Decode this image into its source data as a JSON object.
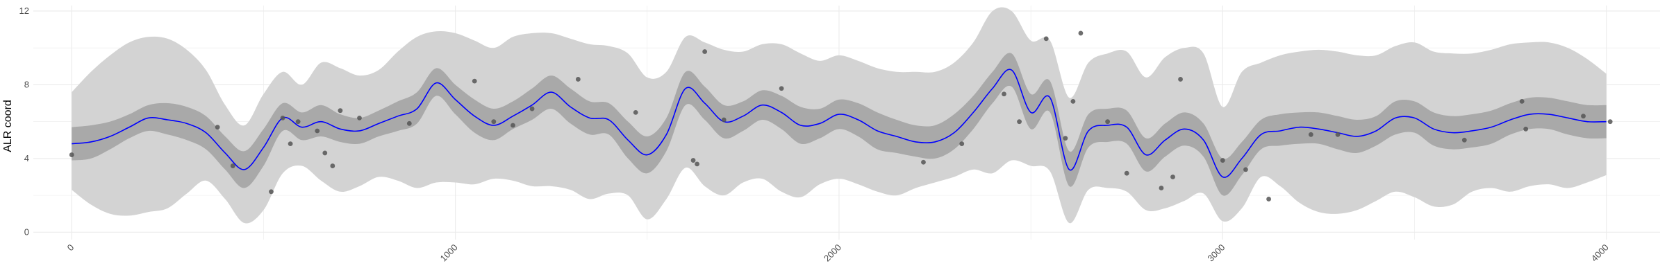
{
  "chart_data": {
    "type": "line",
    "title": "",
    "xlabel": "",
    "ylabel": "ALR coord",
    "xlim": [
      -100,
      4140
    ],
    "ylim": [
      -0.4,
      12.3
    ],
    "x_ticks": [
      0,
      1000,
      2000,
      3000,
      4000
    ],
    "y_ticks": [
      0,
      4,
      8,
      12
    ],
    "grid": true,
    "legend": "none",
    "colors": {
      "mean_line": "#0000ff",
      "inner_band": "#a9a9a9",
      "outer_band": "#d3d3d3",
      "points": "#555555",
      "grid": "#ebebeb"
    },
    "series": [
      {
        "type": "line",
        "x": [
          0,
          50,
          100,
          150,
          200,
          250,
          300,
          350,
          400,
          450,
          500,
          550,
          600,
          650,
          700,
          750,
          800,
          850,
          900,
          950,
          1000,
          1050,
          1100,
          1150,
          1200,
          1250,
          1300,
          1350,
          1400,
          1450,
          1500,
          1550,
          1600,
          1650,
          1700,
          1750,
          1800,
          1850,
          1900,
          1950,
          2000,
          2050,
          2100,
          2150,
          2200,
          2250,
          2300,
          2350,
          2400,
          2450,
          2500,
          2550,
          2600,
          2650,
          2700,
          2750,
          2800,
          2850,
          2900,
          2950,
          3000,
          3050,
          3100,
          3150,
          3200,
          3250,
          3300,
          3350,
          3400,
          3450,
          3500,
          3550,
          3600,
          3650,
          3700,
          3750,
          3800,
          3850,
          3900,
          3950,
          4000
        ],
        "y": [
          4.8,
          4.9,
          5.2,
          5.7,
          6.2,
          6.1,
          5.9,
          5.4,
          4.3,
          3.4,
          4.6,
          6.2,
          5.7,
          6.0,
          5.6,
          5.5,
          5.9,
          6.3,
          6.7,
          8.1,
          7.2,
          6.3,
          5.8,
          6.3,
          6.9,
          7.6,
          6.8,
          6.2,
          6.1,
          5.0,
          4.2,
          5.3,
          7.8,
          7.0,
          6.0,
          6.3,
          6.9,
          6.5,
          5.8,
          5.9,
          6.4,
          6.1,
          5.5,
          5.2,
          4.9,
          4.9,
          5.4,
          6.5,
          7.8,
          8.8,
          6.5,
          7.3,
          3.4,
          5.5,
          5.8,
          5.7,
          4.2,
          5.0,
          5.6,
          5.0,
          3.0,
          4.0,
          5.3,
          5.5,
          5.7,
          5.6,
          5.4,
          5.2,
          5.5,
          6.2,
          6.2,
          5.6,
          5.4,
          5.5,
          5.7,
          6.1,
          6.4,
          6.4,
          6.2,
          6.0,
          6.0
        ]
      },
      {
        "type": "band",
        "x": [
          0,
          50,
          100,
          150,
          200,
          250,
          300,
          350,
          400,
          450,
          500,
          550,
          600,
          650,
          700,
          750,
          800,
          850,
          900,
          950,
          1000,
          1050,
          1100,
          1150,
          1200,
          1250,
          1300,
          1350,
          1400,
          1450,
          1500,
          1550,
          1600,
          1650,
          1700,
          1750,
          1800,
          1850,
          1900,
          1950,
          2000,
          2050,
          2100,
          2150,
          2200,
          2250,
          2300,
          2350,
          2400,
          2450,
          2500,
          2550,
          2600,
          2650,
          2700,
          2750,
          2800,
          2850,
          2900,
          2950,
          3000,
          3050,
          3100,
          3150,
          3200,
          3250,
          3300,
          3350,
          3400,
          3450,
          3500,
          3550,
          3600,
          3650,
          3700,
          3750,
          3800,
          3850,
          3900,
          3950,
          4000
        ],
        "low": [
          3.9,
          4.0,
          4.5,
          5.1,
          5.5,
          5.3,
          5.0,
          4.5,
          3.4,
          2.4,
          3.6,
          5.5,
          5.0,
          5.2,
          4.9,
          4.8,
          5.2,
          5.5,
          5.9,
          7.4,
          6.4,
          5.4,
          5.0,
          5.6,
          6.1,
          6.7,
          5.9,
          5.3,
          5.3,
          4.0,
          3.2,
          4.4,
          6.9,
          6.1,
          5.1,
          5.5,
          6.1,
          5.6,
          4.8,
          5.1,
          5.6,
          5.2,
          4.5,
          4.3,
          4.1,
          4.0,
          4.5,
          5.6,
          7.0,
          7.9,
          5.6,
          6.5,
          2.5,
          4.6,
          4.9,
          4.8,
          3.3,
          4.1,
          4.7,
          4.1,
          2.0,
          3.1,
          4.5,
          4.7,
          4.8,
          4.8,
          4.5,
          4.3,
          4.7,
          5.3,
          5.4,
          4.7,
          4.5,
          4.6,
          4.8,
          5.3,
          5.6,
          5.6,
          5.3,
          5.1,
          5.1
        ],
        "high": [
          5.7,
          5.8,
          6.0,
          6.4,
          6.9,
          7.0,
          6.8,
          6.3,
          5.2,
          4.4,
          5.6,
          7.0,
          6.5,
          6.9,
          6.4,
          6.2,
          6.6,
          7.1,
          7.6,
          8.9,
          8.0,
          7.2,
          6.7,
          7.1,
          7.8,
          8.5,
          7.8,
          7.1,
          7.0,
          6.0,
          5.2,
          6.2,
          8.7,
          7.9,
          6.9,
          7.1,
          7.7,
          7.4,
          6.8,
          6.7,
          7.2,
          7.0,
          6.5,
          6.1,
          5.8,
          5.8,
          6.4,
          7.4,
          8.7,
          9.7,
          7.5,
          8.2,
          4.4,
          6.4,
          6.7,
          6.6,
          5.1,
          5.9,
          6.5,
          5.9,
          4.0,
          4.9,
          6.1,
          6.4,
          6.5,
          6.5,
          6.3,
          6.1,
          6.3,
          7.1,
          7.1,
          6.5,
          6.3,
          6.4,
          6.6,
          7.0,
          7.3,
          7.3,
          7.1,
          6.9,
          6.9
        ]
      },
      {
        "type": "band",
        "x": [
          0,
          50,
          100,
          150,
          200,
          250,
          300,
          350,
          400,
          450,
          500,
          550,
          600,
          650,
          700,
          750,
          800,
          850,
          900,
          950,
          1000,
          1050,
          1100,
          1150,
          1200,
          1250,
          1300,
          1350,
          1400,
          1450,
          1500,
          1550,
          1600,
          1650,
          1700,
          1750,
          1800,
          1850,
          1900,
          1950,
          2000,
          2050,
          2100,
          2150,
          2200,
          2250,
          2300,
          2350,
          2400,
          2450,
          2500,
          2550,
          2600,
          2650,
          2700,
          2750,
          2800,
          2850,
          2900,
          2950,
          3000,
          3050,
          3100,
          3150,
          3200,
          3250,
          3300,
          3350,
          3400,
          3450,
          3500,
          3550,
          3600,
          3650,
          3700,
          3750,
          3800,
          3850,
          3900,
          3950,
          4000
        ],
        "low": [
          2.3,
          1.5,
          1.0,
          0.9,
          1.1,
          1.3,
          2.1,
          2.8,
          1.8,
          0.5,
          1.2,
          3.2,
          3.6,
          2.8,
          2.2,
          2.5,
          3.0,
          2.8,
          2.4,
          2.7,
          2.7,
          2.6,
          2.9,
          2.8,
          2.5,
          2.5,
          2.3,
          1.8,
          2.1,
          2.0,
          0.7,
          1.8,
          3.5,
          2.5,
          2.0,
          2.7,
          2.9,
          2.2,
          1.9,
          2.6,
          2.9,
          2.6,
          2.2,
          2.0,
          2.4,
          2.7,
          3.0,
          3.4,
          3.2,
          3.9,
          3.6,
          3.3,
          0.5,
          2.3,
          2.4,
          2.2,
          1.2,
          1.3,
          1.7,
          2.1,
          0.6,
          1.3,
          3.0,
          2.5,
          1.6,
          1.1,
          1.0,
          1.2,
          1.7,
          2.2,
          1.9,
          1.4,
          1.5,
          2.2,
          2.4,
          2.2,
          2.5,
          2.6,
          2.4,
          2.7,
          3.1
        ],
        "high": [
          7.6,
          8.7,
          9.6,
          10.3,
          10.6,
          10.5,
          9.9,
          8.8,
          6.9,
          5.8,
          7.5,
          8.7,
          8.0,
          9.2,
          8.9,
          8.5,
          8.8,
          9.8,
          10.6,
          10.9,
          10.8,
          10.4,
          10.0,
          10.6,
          10.8,
          10.8,
          10.5,
          10.2,
          10.1,
          9.7,
          8.4,
          8.7,
          10.6,
          10.3,
          9.9,
          9.8,
          10.2,
          10.2,
          9.7,
          9.3,
          9.6,
          9.3,
          8.9,
          8.7,
          8.7,
          8.7,
          9.2,
          10.3,
          12.0,
          12.0,
          10.4,
          10.4,
          7.3,
          9.2,
          9.7,
          9.8,
          8.4,
          9.5,
          10.0,
          9.7,
          6.8,
          8.7,
          9.2,
          9.6,
          9.8,
          9.9,
          9.8,
          9.6,
          9.6,
          10.1,
          10.3,
          9.8,
          9.7,
          9.7,
          9.9,
          10.2,
          10.3,
          10.3,
          10.0,
          9.4,
          8.6
        ]
      },
      {
        "type": "scatter",
        "x": [
          0,
          380,
          420,
          520,
          550,
          570,
          590,
          640,
          660,
          680,
          700,
          750,
          880,
          1050,
          1100,
          1150,
          1200,
          1320,
          1470,
          1620,
          1630,
          1650,
          1700,
          1850,
          2220,
          2320,
          2430,
          2470,
          2540,
          2590,
          2610,
          2630,
          2700,
          2750,
          2840,
          2870,
          2890,
          3000,
          3060,
          3120,
          3230,
          3300,
          3630,
          3780,
          3790,
          3940,
          4010
        ],
        "y": [
          4.2,
          5.7,
          3.6,
          2.2,
          6.2,
          4.8,
          6.0,
          5.5,
          4.3,
          3.6,
          6.6,
          6.2,
          5.9,
          8.2,
          6.0,
          5.8,
          6.7,
          8.3,
          6.5,
          3.9,
          3.7,
          9.8,
          6.1,
          7.8,
          3.8,
          4.8,
          7.5,
          6.0,
          10.5,
          5.1,
          7.1,
          10.8,
          6.0,
          3.2,
          2.4,
          3.0,
          8.3,
          3.9,
          3.4,
          1.8,
          5.3,
          5.3,
          5.0,
          7.1,
          5.6,
          6.3,
          6.0
        ]
      }
    ]
  }
}
